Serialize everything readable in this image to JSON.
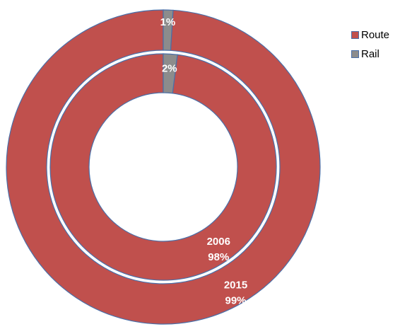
{
  "chart_data": {
    "type": "pie",
    "variant": "nested-donut",
    "categories": [
      "Route",
      "Rail"
    ],
    "series": [
      {
        "name": "2006",
        "values": [
          98,
          2
        ],
        "labels": [
          "2006\n98%",
          "2%"
        ],
        "ring": "inner"
      },
      {
        "name": "2015",
        "values": [
          99,
          1
        ],
        "labels": [
          "2015\n99%",
          "1%"
        ],
        "ring": "outer"
      }
    ],
    "colors": {
      "Route": "#c0504d",
      "Rail": "#8c8c8c",
      "border": "#4a6fa8"
    },
    "legend": {
      "position": "top-right",
      "items": [
        {
          "label": "Route",
          "color": "#c0504d"
        },
        {
          "label": "Rail",
          "color": "#8c8c8c"
        }
      ]
    }
  }
}
